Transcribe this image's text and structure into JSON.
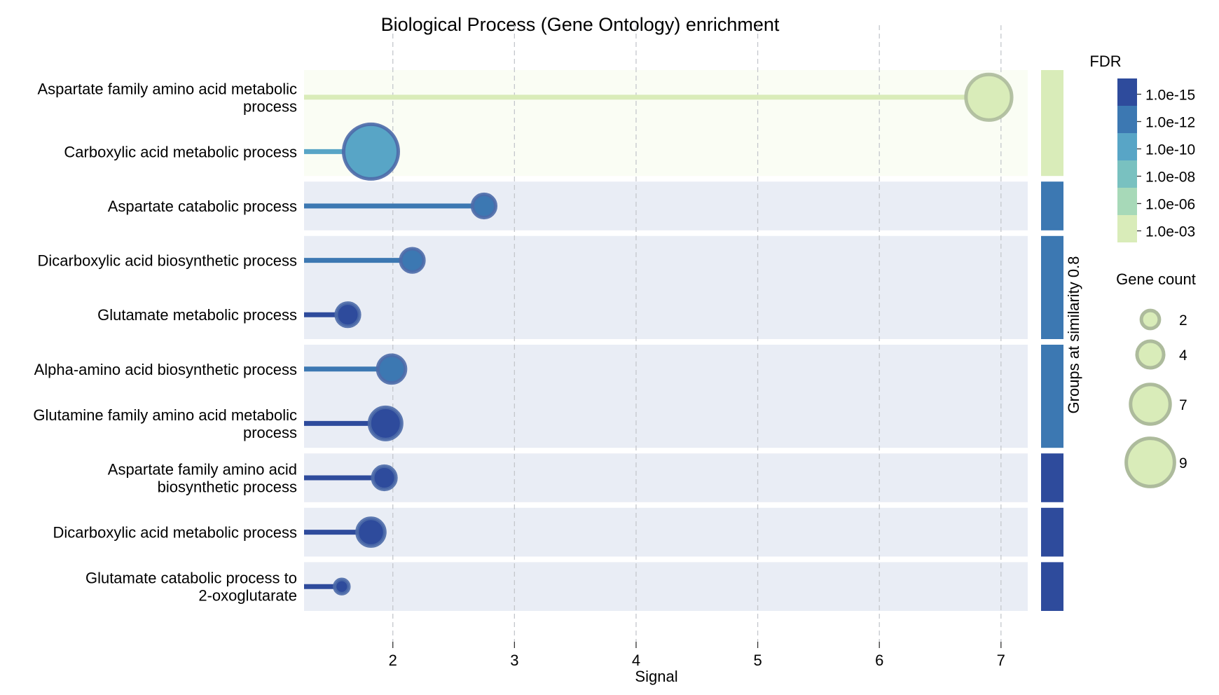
{
  "chart_data": {
    "type": "lollipop",
    "title": "Biological Process (Gene Ontology) enrichment",
    "xlabel": "Signal",
    "xlim": [
      1.27,
      7.22
    ],
    "x_ticks": [
      2,
      3,
      4,
      5,
      6,
      7
    ],
    "grid": "vertical dashed",
    "group_axis_label": "Groups at similarity 0.8",
    "categories": [
      "Aspartate family amino acid metabolic process",
      "Carboxylic acid metabolic process",
      "Aspartate catabolic process",
      "Dicarboxylic acid biosynthetic process",
      "Glutamate metabolic process",
      "Alpha-amino acid biosynthetic process",
      "Glutamine family amino acid metabolic process",
      "Aspartate family amino acid biosynthetic process",
      "Dicarboxylic acid metabolic process",
      "Glutamate catabolic process to 2-oxoglutarate"
    ],
    "category_label_lines": [
      [
        "Aspartate family amino acid metabolic",
        "process"
      ],
      [
        "Carboxylic acid metabolic process"
      ],
      [
        "Aspartate catabolic process"
      ],
      [
        "Dicarboxylic acid biosynthetic process"
      ],
      [
        "Glutamate metabolic process"
      ],
      [
        "Alpha-amino acid biosynthetic process"
      ],
      [
        "Glutamine family amino acid metabolic",
        "process"
      ],
      [
        "Aspartate family amino acid",
        "biosynthetic process"
      ],
      [
        "Dicarboxylic acid metabolic process"
      ],
      [
        "Glutamate catabolic process to",
        "2-oxoglutarate"
      ]
    ],
    "signal": [
      6.9,
      1.82,
      2.75,
      2.16,
      1.63,
      1.99,
      1.94,
      1.93,
      1.82,
      1.58
    ],
    "gene_count": [
      8,
      10,
      3,
      3,
      3,
      4,
      5,
      3,
      4,
      1
    ],
    "fdr_level": [
      0,
      3,
      4,
      4,
      5,
      4,
      5,
      5,
      5,
      5
    ],
    "groups": [
      {
        "rows": [
          0,
          1
        ],
        "fdr_level": 0
      },
      {
        "rows": [
          2
        ],
        "fdr_level": 4
      },
      {
        "rows": [
          3,
          4
        ],
        "fdr_level": 4
      },
      {
        "rows": [
          5,
          6
        ],
        "fdr_level": 4
      },
      {
        "rows": [
          7
        ],
        "fdr_level": 5
      },
      {
        "rows": [
          8
        ],
        "fdr_level": 5
      },
      {
        "rows": [
          9
        ],
        "fdr_level": 5
      }
    ],
    "fdr_legend": {
      "title": "FDR",
      "labels": [
        "1.0e-15",
        "1.0e-12",
        "1.0e-10",
        "1.0e-08",
        "1.0e-06",
        "1.0e-03"
      ],
      "colors": [
        "#d9ecb9",
        "#a7d9b8",
        "#79c1c0",
        "#58a5c6",
        "#3c78b2",
        "#2e4b9c"
      ]
    },
    "size_legend": {
      "title": "Gene count",
      "values": [
        2,
        4,
        7,
        9
      ],
      "labels": [
        "2",
        "4",
        "7",
        "9"
      ]
    },
    "colors": {
      "top_group_background": "#fafdf4",
      "group_background": "#e9edf5",
      "grid": "#c4c7cc",
      "marker_outline_light": "#adbb9c"
    }
  }
}
